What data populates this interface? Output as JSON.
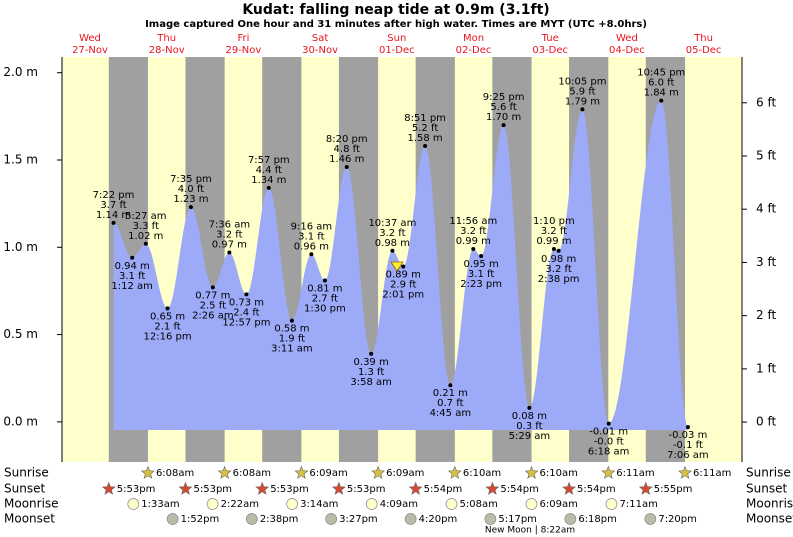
{
  "header": {
    "title": "Kudat: falling  neap tide at 0.9m (3.1ft)",
    "subtitle": "Image captured One hour and 31 minutes after high water. Times are MYT (UTC +8.0hrs)"
  },
  "chart_data": {
    "type": "tide",
    "ylim": [
      -0.23,
      2.09
    ],
    "yticks": [
      {
        "value": 0,
        "label": "0.0 m"
      },
      {
        "value": 0.5,
        "label": "0.5 m"
      },
      {
        "value": 1,
        "label": "1.0 m"
      },
      {
        "value": 1.5,
        "label": "1.5 m"
      },
      {
        "value": 2,
        "label": "2.0 m"
      }
    ],
    "y2lim": [
      -0.75,
      6.86
    ],
    "y2ticks": [
      {
        "value": 0,
        "label": "0 ft"
      },
      {
        "value": 1,
        "label": "1 ft"
      },
      {
        "value": 2,
        "label": "2 ft"
      },
      {
        "value": 3,
        "label": "3 ft"
      },
      {
        "value": 4,
        "label": "4 ft"
      },
      {
        "value": 5,
        "label": "5 ft"
      },
      {
        "value": 6,
        "label": "6 ft"
      }
    ],
    "colors": {
      "day": "#ffffcc",
      "night": "#a0a0a0",
      "water": "#9daaf8",
      "date": "#e8141e"
    },
    "row_labels": [
      "Sunrise",
      "Sunset",
      "Moonrise",
      "Moonset"
    ],
    "note": "New Moon | 8:22am",
    "days": [
      {
        "weekday": "Wed",
        "date": "27-Nov",
        "sunset": "5:53pm",
        "tides": [
          {
            "time": "7:22 pm",
            "height_ft": 3.7,
            "height_ft_label": "3.7 ft",
            "height_m": 1.14,
            "height_m_label": "1.14 m"
          }
        ]
      },
      {
        "weekday": "Thu",
        "date": "28-Nov",
        "sunrise": "6:08am",
        "sunset": "5:53pm",
        "moonrise": "1:33am",
        "moonset": "1:52pm",
        "tides": [
          {
            "time": "1:12 am",
            "height_ft": 3.1,
            "height_ft_label": "3.1 ft",
            "height_m": 0.94,
            "height_m_label": "0.94 m"
          },
          {
            "time": "5:27 am",
            "height_ft": 3.3,
            "height_ft_label": "3.3 ft",
            "height_m": 1.02,
            "height_m_label": "1.02 m"
          },
          {
            "time": "12:16 pm",
            "height_ft": 2.1,
            "height_ft_label": "2.1 ft",
            "height_m": 0.65,
            "height_m_label": "0.65 m"
          },
          {
            "time": "7:35 pm",
            "height_ft": 4.0,
            "height_ft_label": "4.0 ft",
            "height_m": 1.23,
            "height_m_label": "1.23 m"
          }
        ]
      },
      {
        "weekday": "Fri",
        "date": "29-Nov",
        "sunrise": "6:08am",
        "sunset": "5:53pm",
        "moonrise": "2:22am",
        "moonset": "2:38pm",
        "tides": [
          {
            "time": "2:26 am",
            "height_ft": 2.5,
            "height_ft_label": "2.5 ft",
            "height_m": 0.77,
            "height_m_label": "0.77 m"
          },
          {
            "time": "7:36 am",
            "height_ft": 3.2,
            "height_ft_label": "3.2 ft",
            "height_m": 0.97,
            "height_m_label": "0.97 m"
          },
          {
            "time": "12:57 pm",
            "height_ft": 2.4,
            "height_ft_label": "2.4 ft",
            "height_m": 0.73,
            "height_m_label": "0.73 m"
          },
          {
            "time": "7:57 pm",
            "height_ft": 4.4,
            "height_ft_label": "4.4 ft",
            "height_m": 1.34,
            "height_m_label": "1.34 m"
          }
        ]
      },
      {
        "weekday": "Sat",
        "date": "30-Nov",
        "sunrise": "6:09am",
        "sunset": "5:53pm",
        "moonrise": "3:14am",
        "moonset": "3:27pm",
        "tides": [
          {
            "time": "3:11 am",
            "height_ft": 1.9,
            "height_ft_label": "1.9 ft",
            "height_m": 0.58,
            "height_m_label": "0.58 m"
          },
          {
            "time": "9:16 am",
            "height_ft": 3.1,
            "height_ft_label": "3.1 ft",
            "height_m": 0.96,
            "height_m_label": "0.96 m"
          },
          {
            "time": "1:30 pm",
            "height_ft": 2.7,
            "height_ft_label": "2.7 ft",
            "height_m": 0.81,
            "height_m_label": "0.81 m"
          },
          {
            "time": "8:20 pm",
            "height_ft": 4.8,
            "height_ft_label": "4.8 ft",
            "height_m": 1.46,
            "height_m_label": "1.46 m"
          }
        ]
      },
      {
        "weekday": "Sun",
        "date": "01-Dec",
        "sunrise": "6:09am",
        "sunset": "5:54pm",
        "moonrise": "4:09am",
        "moonset": "4:20pm",
        "tides": [
          {
            "time": "3:58 am",
            "height_ft": 1.3,
            "height_ft_label": "1.3 ft",
            "height_m": 0.39,
            "height_m_label": "0.39 m"
          },
          {
            "time": "10:37 am",
            "height_ft": 3.2,
            "height_ft_label": "3.2 ft",
            "height_m": 0.98,
            "height_m_label": "0.98 m"
          },
          {
            "time": "2:01 pm",
            "height_ft": 2.9,
            "height_ft_label": "2.9 ft",
            "height_m": 0.89,
            "height_m_label": "0.89 m"
          },
          {
            "time": "8:51 pm",
            "height_ft": 5.2,
            "height_ft_label": "5.2 ft",
            "height_m": 1.58,
            "height_m_label": "1.58 m"
          }
        ]
      },
      {
        "weekday": "Mon",
        "date": "02-Dec",
        "sunrise": "6:10am",
        "sunset": "5:54pm",
        "moonrise": "5:08am",
        "moonset": "5:17pm",
        "tides": [
          {
            "time": "4:45 am",
            "height_ft": 0.7,
            "height_ft_label": "0.7 ft",
            "height_m": 0.21,
            "height_m_label": "0.21 m"
          },
          {
            "time": "11:56 am",
            "height_ft": 3.2,
            "height_ft_label": "3.2 ft",
            "height_m": 0.99,
            "height_m_label": "0.99 m"
          },
          {
            "time": "2:23 pm",
            "height_ft": 3.1,
            "height_ft_label": "3.1 ft",
            "height_m": 0.95,
            "height_m_label": "0.95 m"
          },
          {
            "time": "9:25 pm",
            "height_ft": 5.6,
            "height_ft_label": "5.6 ft",
            "height_m": 1.7,
            "height_m_label": "1.70 m"
          }
        ]
      },
      {
        "weekday": "Tue",
        "date": "03-Dec",
        "sunrise": "6:10am",
        "sunset": "5:54pm",
        "moonrise": "6:09am",
        "moonset": "6:18pm",
        "tides": [
          {
            "time": "5:29 am",
            "height_ft": 0.3,
            "height_ft_label": "0.3 ft",
            "height_m": 0.08,
            "height_m_label": "0.08 m"
          },
          {
            "time": "1:10 pm",
            "height_ft": 3.2,
            "height_ft_label": "3.2 ft",
            "height_m": 0.99,
            "height_m_label": "0.99 m"
          },
          {
            "time": "2:38 pm",
            "height_ft": 3.2,
            "height_ft_label": "3.2 ft",
            "height_m": 0.98,
            "height_m_label": "0.98 m"
          },
          {
            "time": "10:05 pm",
            "height_ft": 5.9,
            "height_ft_label": "5.9 ft",
            "height_m": 1.79,
            "height_m_label": "1.79 m"
          }
        ]
      },
      {
        "weekday": "Wed",
        "date": "04-Dec",
        "sunrise": "6:11am",
        "sunset": "5:55pm",
        "moonrise": "7:11am",
        "moonset": "7:20pm",
        "tides": [
          {
            "time": "6:18 am",
            "height_ft": -0.0,
            "height_ft_label": "-0.0 ft",
            "height_m": -0.01,
            "height_m_label": "-0.01 m"
          },
          {
            "time": "10:45 pm",
            "height_ft": 6.0,
            "height_ft_label": "6.0 ft",
            "height_m": 1.84,
            "height_m_label": "1.84 m"
          }
        ]
      },
      {
        "weekday": "Thu",
        "date": "05-Dec",
        "sunrise": "6:11am",
        "tides": [
          {
            "time": "7:06 am",
            "height_ft": -0.1,
            "height_ft_label": "-0.1 ft",
            "height_m": -0.03,
            "height_m_label": "-0.03 m"
          }
        ]
      }
    ]
  }
}
